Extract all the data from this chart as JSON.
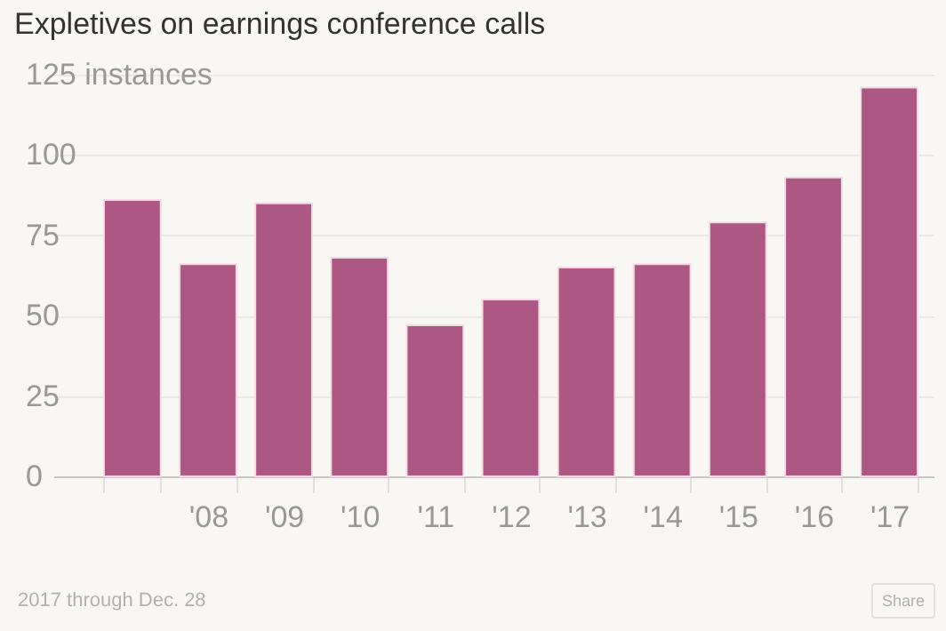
{
  "chart_data": {
    "type": "bar",
    "title": "Expletives on earnings conference calls",
    "categories": [
      null,
      "'08",
      "'09",
      "'10",
      "'11",
      "'12",
      "'13",
      "'14",
      "'15",
      "'16",
      "'17"
    ],
    "values": [
      86,
      66,
      85,
      68,
      47,
      55,
      65,
      66,
      79,
      93,
      121
    ],
    "color": "#ad5783",
    "ylim": [
      0,
      125
    ],
    "yticks": [
      0,
      25,
      50,
      75,
      100,
      {
        "value": 125,
        "label": "125 instances"
      }
    ],
    "grid": "y",
    "annotations": [
      "2017 through Dec. 28",
      "Share"
    ]
  }
}
